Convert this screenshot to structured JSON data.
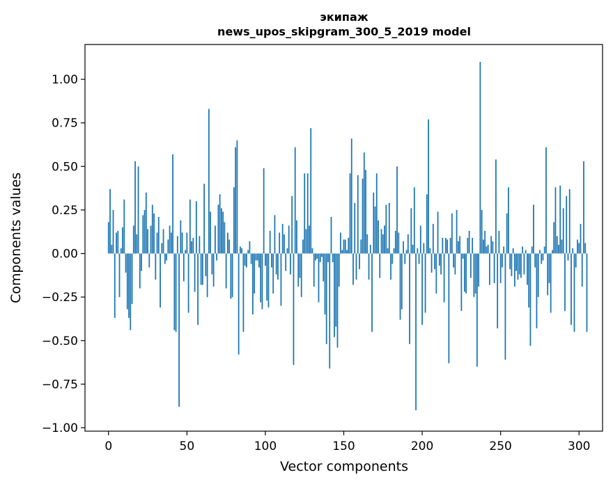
{
  "chart_data": {
    "type": "bar",
    "title": "экипаж",
    "subtitle": "news_upos_skipgram_300_5_2019 model",
    "xlabel": "Vector components",
    "ylabel": "Components values",
    "xlim": [
      -15,
      315
    ],
    "ylim": [
      -1.02,
      1.2
    ],
    "xticks": [
      0,
      50,
      100,
      150,
      200,
      250,
      300
    ],
    "yticks": [
      -1.0,
      -0.75,
      -0.5,
      -0.25,
      0.0,
      0.25,
      0.5,
      0.75,
      1.0
    ],
    "xtick_labels": [
      "0",
      "50",
      "100",
      "150",
      "200",
      "250",
      "300"
    ],
    "ytick_labels": [
      "−1.00",
      "−0.75",
      "−0.50",
      "−0.25",
      "0.00",
      "0.25",
      "0.50",
      "0.75",
      "1.00"
    ],
    "bar_color": "#1f77b4",
    "values": [
      0.18,
      0.37,
      0.05,
      0.25,
      -0.37,
      0.12,
      0.13,
      -0.25,
      0.03,
      0.15,
      0.31,
      -0.11,
      -0.32,
      -0.37,
      -0.44,
      -0.29,
      0.16,
      0.53,
      0.11,
      0.5,
      -0.2,
      -0.1,
      0.22,
      0.25,
      0.35,
      0.14,
      -0.08,
      0.16,
      0.28,
      0.23,
      -0.15,
      0.12,
      0.21,
      -0.31,
      0.06,
      0.14,
      -0.06,
      -0.04,
      0.08,
      0.16,
      0.12,
      0.57,
      -0.44,
      -0.45,
      0.1,
      -0.88,
      0.19,
      0.12,
      -0.16,
      0.02,
      0.12,
      -0.34,
      0.31,
      0.07,
      0.09,
      -0.22,
      0.3,
      -0.41,
      0.1,
      -0.18,
      -0.18,
      0.4,
      -0.13,
      -0.25,
      0.83,
      0.24,
      -0.12,
      -0.19,
      0.16,
      -0.04,
      0.28,
      0.34,
      0.26,
      0.24,
      0.18,
      -0.2,
      0.12,
      0.08,
      -0.26,
      -0.25,
      0.38,
      0.61,
      0.65,
      -0.58,
      0.04,
      0.03,
      -0.45,
      -0.07,
      -0.08,
      0.02,
      0.07,
      -0.06,
      -0.35,
      -0.23,
      -0.04,
      -0.04,
      -0.08,
      -0.28,
      -0.32,
      0.49,
      -0.07,
      -0.27,
      -0.31,
      0.13,
      -0.08,
      -0.23,
      0.22,
      -0.12,
      -0.15,
      0.12,
      -0.3,
      0.17,
      0.11,
      -0.1,
      0.03,
      0.16,
      -0.12,
      0.33,
      -0.64,
      0.61,
      0.19,
      -0.19,
      -0.14,
      -0.25,
      0.08,
      0.46,
      0.14,
      0.46,
      0.16,
      0.72,
      0.03,
      -0.19,
      -0.04,
      -0.03,
      -0.28,
      -0.05,
      -0.02,
      -0.16,
      -0.35,
      -0.52,
      -0.05,
      -0.66,
      0.21,
      -0.05,
      -0.48,
      -0.42,
      -0.54,
      -0.19,
      0.12,
      0.02,
      0.08,
      0.08,
      0.02,
      0.09,
      0.46,
      0.66,
      -0.18,
      0.29,
      -0.15,
      0.45,
      -0.09,
      0.08,
      0.43,
      0.58,
      0.48,
      0.11,
      -0.15,
      0.05,
      -0.45,
      0.35,
      0.27,
      0.46,
      0.19,
      -0.14,
      0.14,
      0.11,
      0.16,
      0.28,
      0.03,
      0.29,
      -0.15,
      -0.06,
      0.03,
      0.13,
      0.5,
      0.12,
      -0.38,
      -0.32,
      0.07,
      -0.06,
      0.02,
      0.11,
      -0.52,
      0.26,
      0.05,
      0.38,
      -0.9,
      0.03,
      -0.06,
      0.16,
      -0.41,
      0.06,
      -0.34,
      0.34,
      0.77,
      0.03,
      -0.11,
      0.17,
      -0.09,
      -0.23,
      0.24,
      -0.07,
      -0.12,
      0.09,
      -0.28,
      0.09,
      0.08,
      -0.63,
      0.09,
      0.23,
      -0.08,
      -0.12,
      0.25,
      0.07,
      0.1,
      -0.33,
      -0.03,
      -0.22,
      -0.23,
      0.09,
      0.13,
      -0.14,
      0.09,
      -0.25,
      -0.23,
      -0.65,
      -0.19,
      1.1,
      0.25,
      0.08,
      0.13,
      0.04,
      0.05,
      -0.18,
      0.1,
      0.07,
      -0.17,
      0.54,
      -0.43,
      0.13,
      -0.17,
      -0.08,
      0.04,
      -0.61,
      0.23,
      0.38,
      -0.09,
      -0.13,
      0.03,
      -0.19,
      -0.1,
      -0.15,
      -0.12,
      -0.14,
      0.04,
      -0.12,
      0.02,
      -0.18,
      -0.31,
      -0.53,
      0.04,
      0.28,
      -0.08,
      -0.43,
      -0.25,
      0.02,
      -0.06,
      -0.04,
      0.04,
      0.61,
      -0.24,
      -0.17,
      -0.34,
      0.02,
      0.18,
      0.38,
      0.1,
      0.05,
      0.39,
      0.08,
      0.26,
      -0.33,
      0.33,
      -0.04,
      0.37,
      -0.41,
      0.03,
      -0.45,
      -0.08,
      0.08,
      0.06,
      0.17,
      -0.19,
      0.53,
      0.06,
      -0.45
    ]
  }
}
